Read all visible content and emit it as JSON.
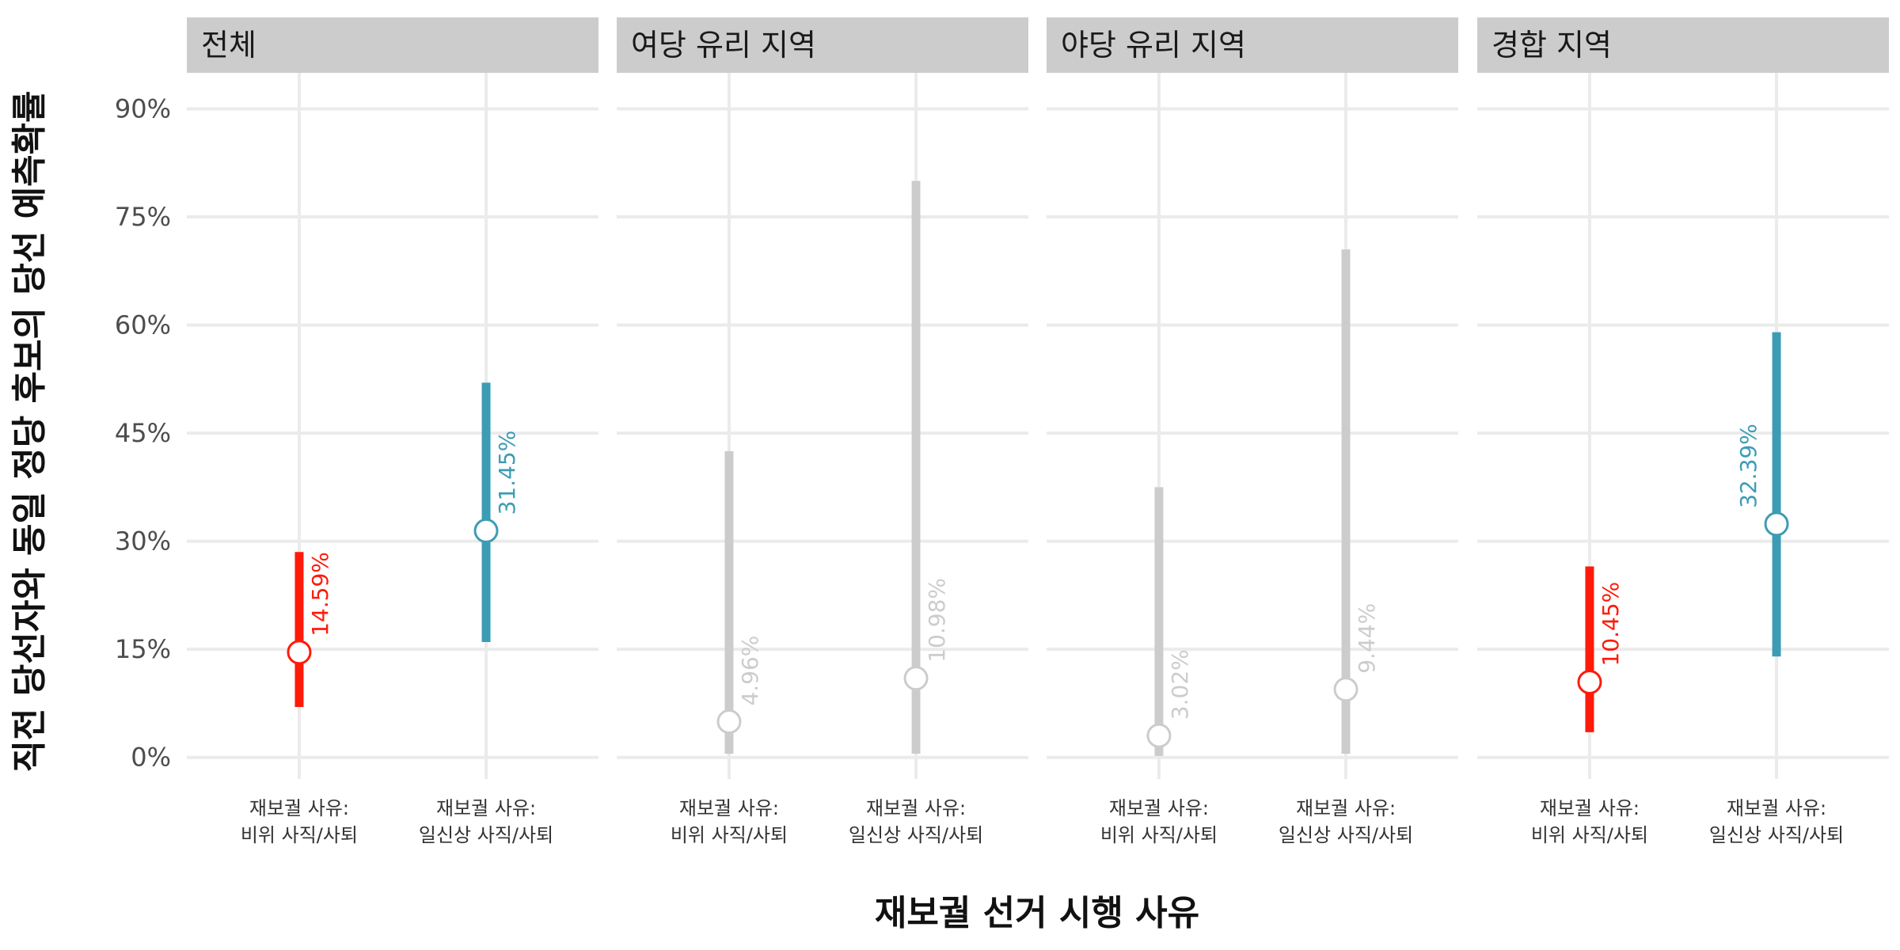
{
  "chart_data": {
    "type": "pointrange",
    "ylabel": "직전 당선자와 동일 정당 후보의 당선 예측확률",
    "xlabel": "재보궐 선거 시행 사유",
    "y_ticks": [
      "0%",
      "15%",
      "30%",
      "45%",
      "60%",
      "75%",
      "90%"
    ],
    "ylim": [
      -0.03,
      0.95
    ],
    "grid": true,
    "categories": [
      {
        "line1": "재보궐 사유:",
        "line2": "비위 사직/사퇴"
      },
      {
        "line1": "재보궐 사유:",
        "line2": "일신상 사직/사퇴"
      }
    ],
    "colors": {
      "misconduct": "#ff1a0a",
      "personal": "#3d9cb5",
      "insignificant": "#cccccc"
    },
    "panels": [
      {
        "title": "전체",
        "points": [
          {
            "category": 0,
            "estimate": 0.1459,
            "lower": 0.07,
            "upper": 0.285,
            "label": "14.59%",
            "color_key": "misconduct"
          },
          {
            "category": 1,
            "estimate": 0.3145,
            "lower": 0.16,
            "upper": 0.52,
            "label": "31.45%",
            "color_key": "personal"
          }
        ]
      },
      {
        "title": "여당 유리 지역",
        "points": [
          {
            "category": 0,
            "estimate": 0.0496,
            "lower": 0.005,
            "upper": 0.425,
            "label": "4.96%",
            "color_key": "insignificant"
          },
          {
            "category": 1,
            "estimate": 0.1098,
            "lower": 0.005,
            "upper": 0.8,
            "label": "10.98%",
            "color_key": "insignificant"
          }
        ]
      },
      {
        "title": "야당 유리 지역",
        "points": [
          {
            "category": 0,
            "estimate": 0.0302,
            "lower": 0.002,
            "upper": 0.375,
            "label": "3.02%",
            "color_key": "insignificant"
          },
          {
            "category": 1,
            "estimate": 0.0944,
            "lower": 0.005,
            "upper": 0.705,
            "label": "9.44%",
            "color_key": "insignificant"
          }
        ]
      },
      {
        "title": "경합 지역",
        "points": [
          {
            "category": 0,
            "estimate": 0.1045,
            "lower": 0.035,
            "upper": 0.265,
            "label": "10.45%",
            "color_key": "misconduct"
          },
          {
            "category": 1,
            "estimate": 0.3239,
            "lower": 0.14,
            "upper": 0.59,
            "label": "32.39%",
            "color_key": "personal",
            "label_side": "left"
          }
        ]
      }
    ]
  }
}
